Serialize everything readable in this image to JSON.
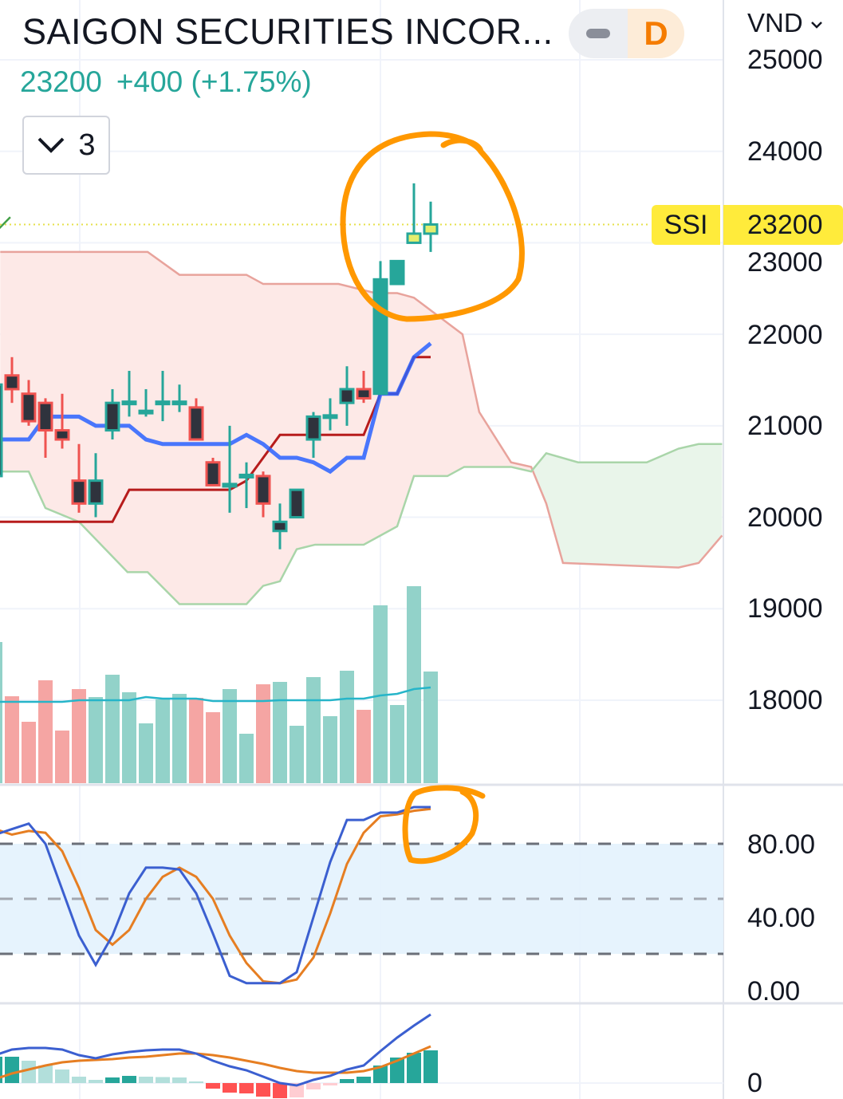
{
  "header": {
    "title": "SAIGON SECURITIES INCOR...",
    "last_price": "23200",
    "change": "+400 (+1.75%)",
    "indicator_count": "3",
    "interval": "D",
    "currency": "VND"
  },
  "price_tag": {
    "symbol": "SSI",
    "value": "23200"
  },
  "colors": {
    "up": "#26a69a",
    "down": "#ef5350",
    "tenkan": "#2962ff",
    "kijun": "#b71c1c",
    "highlight": "#ffeb3b",
    "annotation": "#ff9800"
  },
  "chart_data": {
    "type": "candlestick",
    "price_axis": {
      "ticks": [
        "25000",
        "24000",
        "23000",
        "22000",
        "21000",
        "20000",
        "19000",
        "18000"
      ],
      "range": [
        17500,
        25300
      ]
    },
    "candles": [
      {
        "o": 20450,
        "h": 21450,
        "l": 20450,
        "c": 21450,
        "style": "hollow"
      },
      {
        "o": 21550,
        "h": 21750,
        "l": 21250,
        "c": 21400,
        "style": "hollow"
      },
      {
        "o": 21350,
        "h": 21500,
        "l": 21000,
        "c": 21050,
        "style": "hollow"
      },
      {
        "o": 21250,
        "h": 21300,
        "l": 20650,
        "c": 20950,
        "style": "hollow"
      },
      {
        "o": 20950,
        "h": 21350,
        "l": 20750,
        "c": 20850,
        "style": "hollow"
      },
      {
        "o": 20400,
        "h": 20800,
        "l": 20050,
        "c": 20150,
        "style": "hollow"
      },
      {
        "o": 20150,
        "h": 20700,
        "l": 20000,
        "c": 20400,
        "style": "hollow"
      },
      {
        "o": 20950,
        "h": 21400,
        "l": 20850,
        "c": 21250,
        "style": "hollow"
      },
      {
        "o": 21250,
        "h": 21600,
        "l": 21100,
        "c": 21250,
        "style": "hollow"
      },
      {
        "o": 21150,
        "h": 21400,
        "l": 21100,
        "c": 21150,
        "style": "hollow"
      },
      {
        "o": 21250,
        "h": 21600,
        "l": 21050,
        "c": 21250,
        "style": "hollow"
      },
      {
        "o": 21250,
        "h": 21450,
        "l": 21150,
        "c": 21250,
        "style": "hollow"
      },
      {
        "o": 21200,
        "h": 21300,
        "l": 20850,
        "c": 20850,
        "style": "hollow"
      },
      {
        "o": 20600,
        "h": 20650,
        "l": 20350,
        "c": 20350,
        "style": "hollow"
      },
      {
        "o": 20350,
        "h": 21000,
        "l": 20050,
        "c": 20350,
        "style": "hollow"
      },
      {
        "o": 20450,
        "h": 20600,
        "l": 20100,
        "c": 20450,
        "style": "hollow"
      },
      {
        "o": 20450,
        "h": 20500,
        "l": 20000,
        "c": 20150,
        "style": "hollow"
      },
      {
        "o": 19850,
        "h": 20150,
        "l": 19650,
        "c": 19950,
        "style": "hollow"
      },
      {
        "o": 20000,
        "h": 20300,
        "l": 20000,
        "c": 20300,
        "style": "hollow"
      },
      {
        "o": 20850,
        "h": 21150,
        "l": 20650,
        "c": 21100,
        "style": "hollow"
      },
      {
        "o": 21100,
        "h": 21300,
        "l": 20950,
        "c": 21100,
        "style": "hollow"
      },
      {
        "o": 21250,
        "h": 21650,
        "l": 21000,
        "c": 21400,
        "style": "hollow"
      },
      {
        "o": 21400,
        "h": 21600,
        "l": 21250,
        "c": 21300,
        "style": "hollow"
      },
      {
        "o": 21350,
        "h": 22800,
        "l": 21350,
        "c": 22600,
        "style": "solid"
      },
      {
        "o": 22550,
        "h": 22800,
        "l": 22550,
        "c": 22800,
        "style": "solid"
      },
      {
        "o": 23000,
        "h": 23650,
        "l": 23000,
        "c": 23100,
        "style": "highlight"
      },
      {
        "o": 23100,
        "h": 23450,
        "l": 22900,
        "c": 23200,
        "style": "highlight"
      }
    ],
    "last_price": 23200,
    "tenkan": [
      20850,
      20850,
      20850,
      21100,
      21100,
      21100,
      21000,
      21000,
      21000,
      20850,
      20800,
      20800,
      20800,
      20800,
      20800,
      20900,
      20800,
      20650,
      20650,
      20600,
      20500,
      20650,
      20650,
      21350,
      21350,
      21750,
      21900
    ],
    "kijun": [
      19950,
      19950,
      19950,
      19950,
      19950,
      19950,
      19950,
      19950,
      20300,
      20300,
      20300,
      20300,
      20300,
      20300,
      20300,
      20400,
      20650,
      20900,
      20900,
      20900,
      20900,
      20900,
      20900,
      21350,
      21350,
      21750,
      21750
    ],
    "span_a": [
      [
        0.3,
        22900
      ],
      [
        9.1,
        22900
      ],
      [
        11,
        22650
      ],
      [
        15,
        22650
      ],
      [
        16,
        22550
      ],
      [
        20.5,
        22550
      ],
      [
        22.7,
        22450
      ],
      [
        24,
        22450
      ],
      [
        25,
        22400
      ],
      [
        27.9,
        22000
      ],
      [
        28.9,
        21150
      ],
      [
        30.8,
        20600
      ],
      [
        32,
        20550
      ],
      [
        32.9,
        20150
      ],
      [
        33.9,
        19500
      ],
      [
        40.8,
        19450
      ],
      [
        42,
        19500
      ],
      [
        43.4,
        19800
      ]
    ],
    "span_b": [
      [
        0.3,
        20500
      ],
      [
        2,
        20500
      ],
      [
        3,
        20100
      ],
      [
        5,
        19950
      ],
      [
        7.9,
        19400
      ],
      [
        9.1,
        19400
      ],
      [
        11,
        19050
      ],
      [
        15,
        19050
      ],
      [
        16,
        19250
      ],
      [
        17,
        19300
      ],
      [
        18,
        19650
      ],
      [
        19.1,
        19700
      ],
      [
        22,
        19700
      ],
      [
        23,
        19800
      ],
      [
        24,
        19900
      ],
      [
        25,
        20450
      ],
      [
        27,
        20450
      ],
      [
        28,
        20550
      ],
      [
        30.8,
        20550
      ],
      [
        32,
        20500
      ],
      [
        32.9,
        20700
      ],
      [
        34.8,
        20600
      ],
      [
        38.9,
        20600
      ],
      [
        40.8,
        20750
      ],
      [
        42,
        20800
      ],
      [
        43.4,
        20800
      ]
    ],
    "lagging_span": [
      [
        0.2,
        23150
      ],
      [
        0.9,
        23280
      ]
    ],
    "volume": [
      177,
      109,
      77,
      129,
      66,
      118,
      108,
      136,
      114,
      75,
      105,
      112,
      107,
      89,
      118,
      62,
      124,
      127,
      72,
      133,
      84,
      141,
      92,
      223,
      98,
      247,
      140
    ],
    "volume_ma": [
      102,
      102,
      102,
      102,
      102,
      104,
      104,
      104,
      104,
      108,
      106,
      106,
      106,
      103,
      103,
      103,
      103,
      104,
      104,
      104,
      104,
      106,
      106,
      110,
      112,
      118,
      120
    ],
    "stochastic": {
      "ticks": [
        "80.00",
        "40.00",
        "0.00"
      ],
      "levels": [
        80,
        50,
        20
      ],
      "k": [
        85,
        88,
        91,
        80,
        55,
        30,
        14,
        30,
        53,
        67,
        67,
        66,
        53,
        31,
        8,
        4,
        4,
        4,
        10,
        40,
        70,
        93,
        93,
        97,
        97,
        100,
        100
      ],
      "d": [
        88,
        85,
        87,
        86,
        76,
        56,
        33,
        25,
        33,
        50,
        62,
        67,
        62,
        50,
        30,
        15,
        5,
        4,
        6,
        18,
        42,
        69,
        86,
        95,
        96,
        98,
        99
      ]
    },
    "macd": {
      "ticks": [
        "0"
      ],
      "histogram": [
        33,
        33,
        28,
        22,
        17,
        8,
        4,
        7,
        9,
        8,
        7.5,
        7,
        2,
        -7,
        -12,
        -13,
        -17,
        -19,
        -18,
        -8,
        -3,
        5,
        8,
        22,
        32,
        38,
        41
      ],
      "macd": [
        35,
        42,
        44,
        44,
        42,
        35,
        31,
        36,
        39,
        41,
        42,
        42,
        37,
        28,
        21,
        16,
        8,
        0,
        -3,
        4,
        9,
        17,
        22,
        40,
        57,
        72,
        86
      ],
      "signal": [
        5,
        12,
        17,
        22,
        26,
        28,
        29,
        30,
        32,
        33,
        35,
        37,
        37,
        35,
        32,
        28,
        24,
        19,
        15,
        13,
        13,
        13,
        15,
        20,
        28,
        37,
        46
      ]
    }
  }
}
